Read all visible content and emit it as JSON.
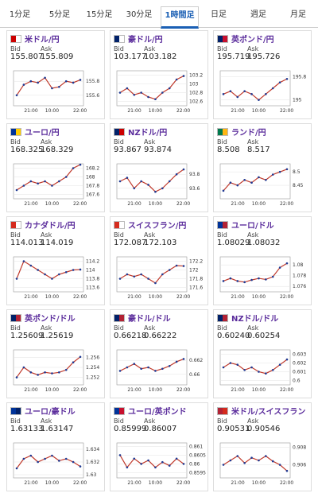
{
  "tabs": [
    "1分足",
    "5分足",
    "15分足",
    "30分足",
    "1時間足",
    "日足",
    "週足",
    "月足"
  ],
  "active_tab": 4,
  "labels": {
    "bid": "Bid",
    "ask": "Ask"
  },
  "time_labels": [
    "21:00",
    "10:00",
    "22:00"
  ],
  "cards": [
    {
      "name": "米ドル/円",
      "bid": "155.807",
      "ask": "155.809",
      "ylim": [
        155.45,
        155.95
      ],
      "yticks": [
        155.8,
        155.6
      ],
      "values": [
        155.6,
        155.75,
        155.8,
        155.78,
        155.85,
        155.7,
        155.72,
        155.8,
        155.78,
        155.82
      ]
    },
    {
      "name": "豪ドル/円",
      "bid": "103.177",
      "ask": "103.182",
      "ylim": [
        102.5,
        103.3
      ],
      "yticks": [
        103.2,
        103,
        102.8,
        102.6
      ],
      "values": [
        102.8,
        102.9,
        102.75,
        102.8,
        102.7,
        102.65,
        102.8,
        102.9,
        103.1,
        103.18
      ]
    },
    {
      "name": "英ポンド/円",
      "bid": "195.719",
      "ask": "195.726",
      "ylim": [
        194.8,
        196.0
      ],
      "yticks": [
        195.8,
        195
      ],
      "values": [
        195.2,
        195.3,
        195.1,
        195.3,
        195.2,
        195.0,
        195.2,
        195.4,
        195.6,
        195.72
      ]
    },
    {
      "name": "ユーロ/円",
      "bid": "168.325",
      "ask": "168.329",
      "ylim": [
        167.5,
        168.3
      ],
      "yticks": [
        168.2,
        168,
        167.8,
        167.6
      ],
      "values": [
        167.7,
        167.8,
        167.9,
        167.85,
        167.9,
        167.8,
        167.9,
        168.0,
        168.2,
        168.28
      ]
    },
    {
      "name": "NZドル/円",
      "bid": "93.867",
      "ask": "93.874",
      "ylim": [
        93.45,
        93.95
      ],
      "yticks": [
        93.8,
        93.6
      ],
      "values": [
        93.7,
        93.75,
        93.6,
        93.7,
        93.65,
        93.55,
        93.6,
        93.7,
        93.8,
        93.87
      ]
    },
    {
      "name": "ランド/円",
      "bid": "8.508",
      "ask": "8.517",
      "ylim": [
        8.4,
        8.53
      ],
      "yticks": [
        8.5,
        8.45
      ],
      "values": [
        8.43,
        8.46,
        8.45,
        8.47,
        8.46,
        8.48,
        8.47,
        8.49,
        8.5,
        8.51
      ]
    },
    {
      "name": "カナダドル/円",
      "bid": "114.013",
      "ask": "114.019",
      "ylim": [
        113.5,
        114.3
      ],
      "yticks": [
        114.2,
        114,
        113.8,
        113.6
      ],
      "values": [
        113.8,
        114.2,
        114.1,
        114,
        113.9,
        113.8,
        113.9,
        113.95,
        114.0,
        114.01
      ]
    },
    {
      "name": "スイスフラン/円",
      "bid": "172.087",
      "ask": "172.103",
      "ylim": [
        171.5,
        172.3
      ],
      "yticks": [
        172.2,
        172,
        171.8,
        171.6
      ],
      "values": [
        171.8,
        171.9,
        171.85,
        171.9,
        171.8,
        171.7,
        171.9,
        172.0,
        172.1,
        172.09
      ]
    },
    {
      "name": "ユーロ/ドル",
      "bid": "1.08029",
      "ask": "1.08032",
      "ylim": [
        1.075,
        1.0815
      ],
      "yticks": [
        1.08,
        1.078,
        1.076
      ],
      "values": [
        1.077,
        1.0775,
        1.077,
        1.0768,
        1.0772,
        1.0775,
        1.0773,
        1.0778,
        1.0795,
        1.0803
      ]
    },
    {
      "name": "英ポンド/ドル",
      "bid": "1.25609",
      "ask": "1.25619",
      "ylim": [
        1.2505,
        1.2575
      ],
      "yticks": [
        1.256,
        1.254,
        1.252
      ],
      "values": [
        1.252,
        1.254,
        1.253,
        1.2525,
        1.253,
        1.2528,
        1.253,
        1.2535,
        1.255,
        1.2561
      ]
    },
    {
      "name": "豪ドル/ドル",
      "bid": "0.66218",
      "ask": "0.66222",
      "ylim": [
        0.6585,
        0.6635
      ],
      "yticks": [
        0.662,
        0.66
      ],
      "values": [
        0.6605,
        0.661,
        0.6615,
        0.6608,
        0.661,
        0.6605,
        0.6608,
        0.6612,
        0.6618,
        0.6622
      ]
    },
    {
      "name": "NZドル/ドル",
      "bid": "0.60240",
      "ask": "0.60254",
      "ylim": [
        0.5995,
        0.6035
      ],
      "yticks": [
        0.603,
        0.602,
        0.601,
        0.6
      ],
      "values": [
        0.6015,
        0.602,
        0.6018,
        0.6012,
        0.6015,
        0.601,
        0.6008,
        0.6012,
        0.6018,
        0.6024
      ]
    },
    {
      "name": "ユーロ/豪ドル",
      "bid": "1.63133",
      "ask": "1.63147",
      "ylim": [
        1.6295,
        1.635
      ],
      "yticks": [
        1.634,
        1.632,
        1.63
      ],
      "values": [
        1.631,
        1.6325,
        1.633,
        1.632,
        1.6325,
        1.633,
        1.6322,
        1.6325,
        1.632,
        1.6313
      ]
    },
    {
      "name": "ユーロ/英ポンド",
      "bid": "0.85999",
      "ask": "0.86007",
      "ylim": [
        0.8592,
        0.8612
      ],
      "yticks": [
        0.861,
        0.8605,
        0.86,
        0.8595
      ],
      "values": [
        0.8605,
        0.8598,
        0.8603,
        0.86,
        0.8602,
        0.8598,
        0.8601,
        0.8599,
        0.8603,
        0.86
      ]
    },
    {
      "name": "米ドル/スイスフラン",
      "bid": "0.90531",
      "ask": "0.90546",
      "ylim": [
        0.9045,
        0.9085
      ],
      "yticks": [
        0.908,
        0.906
      ],
      "values": [
        0.906,
        0.9065,
        0.907,
        0.9062,
        0.9068,
        0.9065,
        0.907,
        0.9064,
        0.906,
        0.9053
      ]
    }
  ]
}
